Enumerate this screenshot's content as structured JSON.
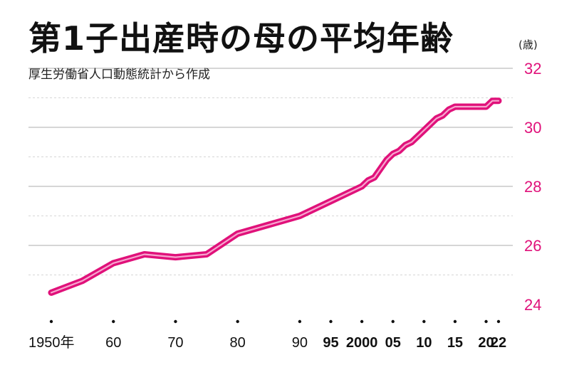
{
  "title": "第1子出産時の母の平均年齢",
  "subtitle": "厚生労働省人口動態統計から作成",
  "unit_label": "(歳)",
  "colors": {
    "line": "#e0117a",
    "line_highlight": "#f7a6cf",
    "y_tick": "#e0117a",
    "grid_major": "#bdbdbd",
    "grid_minor": "#d6d6d6"
  },
  "chart_data": {
    "type": "line",
    "title": "第1子出産時の母の平均年齢",
    "subtitle": "厚生労働省人口動態統計から作成",
    "ylabel": "(歳)",
    "ylim": [
      24,
      32
    ],
    "xlim": [
      1950,
      2022
    ],
    "yticks": [
      24,
      26,
      28,
      30,
      32
    ],
    "y_minor_gridlines": [
      25,
      27,
      29,
      31
    ],
    "x_tick_positions": [
      1950,
      1960,
      1970,
      1980,
      1990,
      1995,
      2000,
      2005,
      2010,
      2015,
      2020,
      2022
    ],
    "x_tick_labels": [
      "1950年",
      "60",
      "70",
      "80",
      "90",
      "95",
      "2000",
      "05",
      "10",
      "15",
      "20",
      "22"
    ],
    "x_tick_bold": [
      false,
      false,
      false,
      false,
      false,
      true,
      true,
      true,
      true,
      true,
      true,
      true
    ],
    "grid": true,
    "series": [
      {
        "x": [
          1950,
          1955,
          1960,
          1965,
          1970,
          1975,
          1980,
          1985,
          1990,
          1995,
          2000,
          2001,
          2002,
          2003,
          2004,
          2005,
          2006,
          2007,
          2008,
          2009,
          2010,
          2011,
          2012,
          2013,
          2014,
          2015,
          2016,
          2017,
          2018,
          2019,
          2020,
          2021,
          2022
        ],
        "y": [
          24.4,
          24.8,
          25.4,
          25.7,
          25.6,
          25.7,
          26.4,
          26.7,
          27.0,
          27.5,
          28.0,
          28.2,
          28.3,
          28.6,
          28.9,
          29.1,
          29.2,
          29.4,
          29.5,
          29.7,
          29.9,
          30.1,
          30.3,
          30.4,
          30.6,
          30.7,
          30.7,
          30.7,
          30.7,
          30.7,
          30.7,
          30.9,
          30.9
        ]
      }
    ]
  }
}
